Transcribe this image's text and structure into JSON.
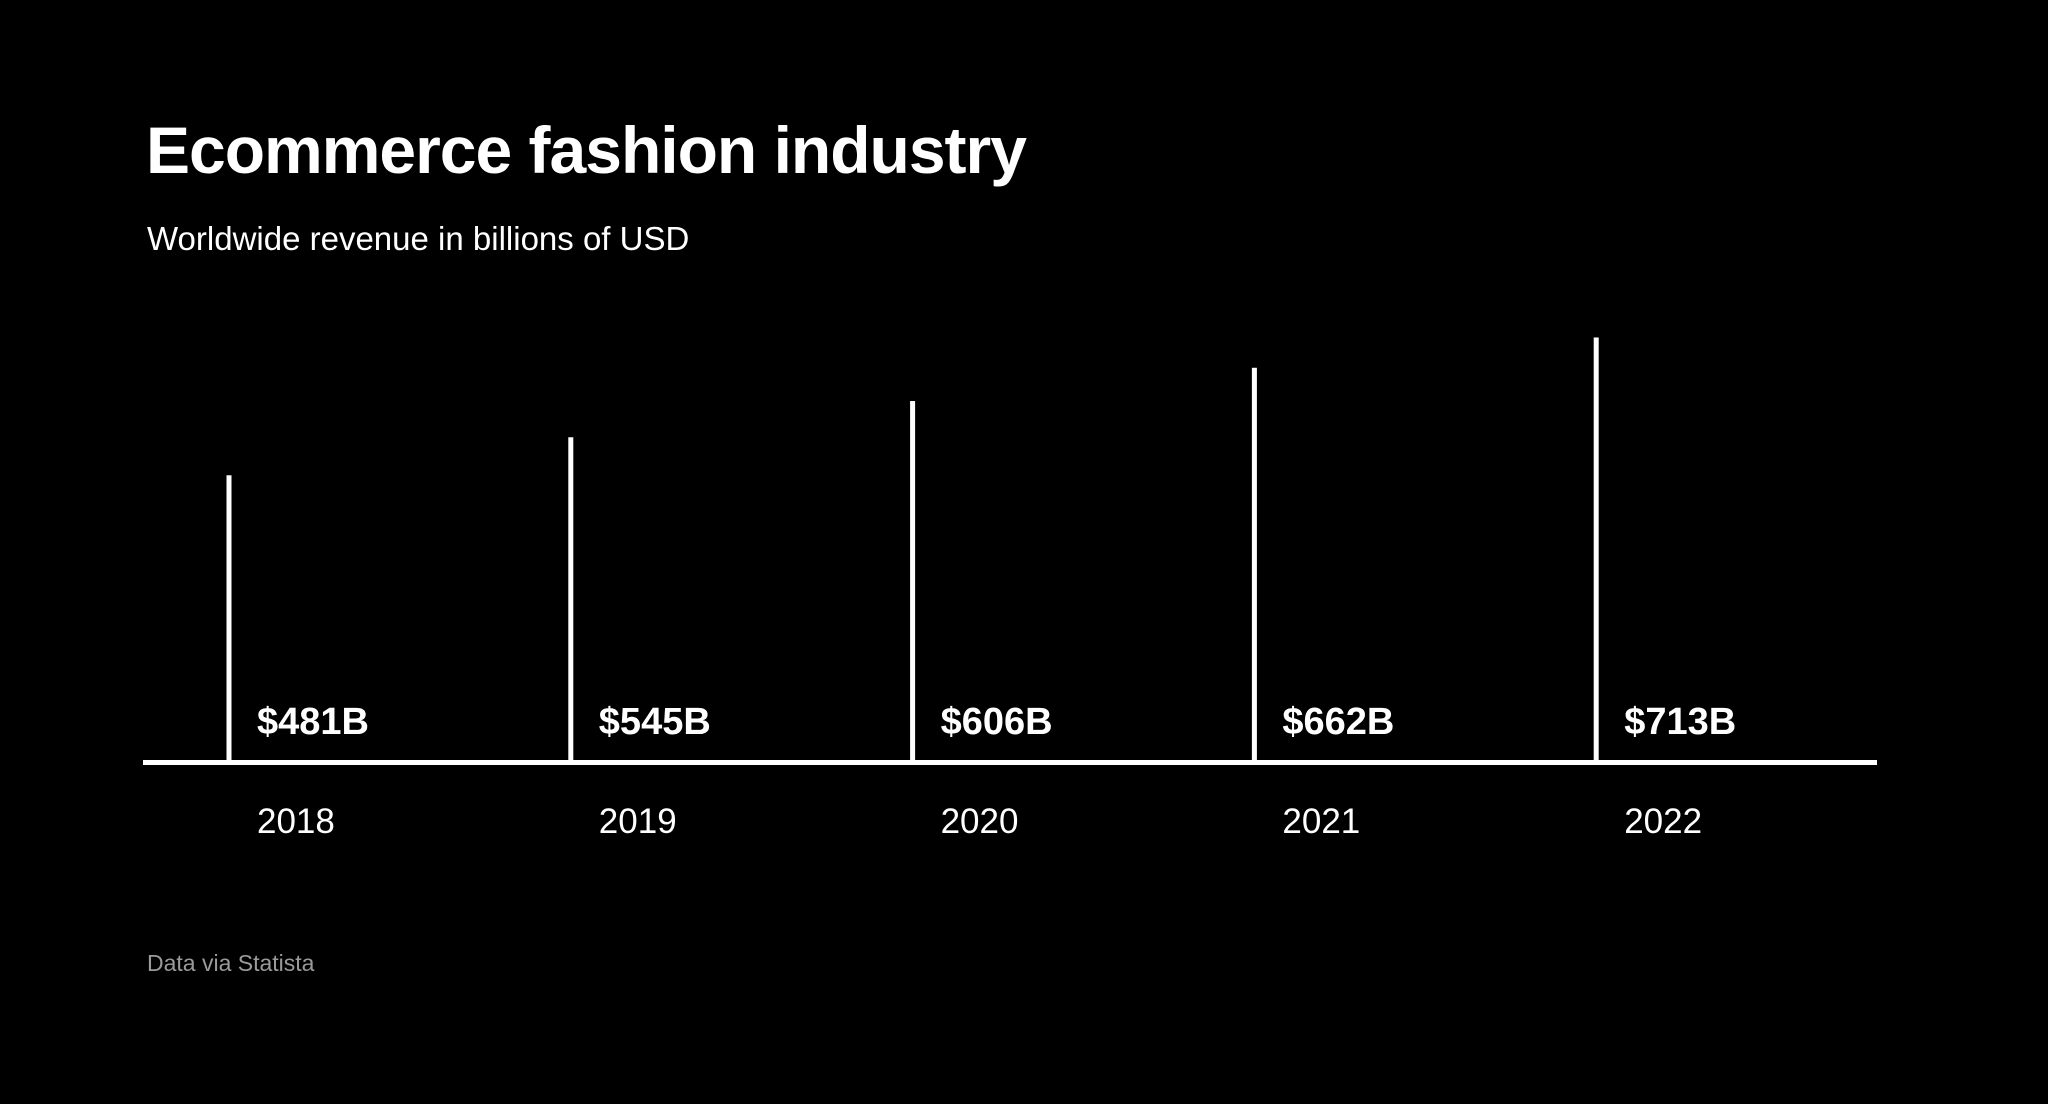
{
  "chart_data": {
    "type": "bar",
    "title": "Ecommerce fashion industry",
    "subtitle": "Worldwide revenue in billions of USD",
    "categories": [
      "2018",
      "2019",
      "2020",
      "2021",
      "2022"
    ],
    "values": [
      481,
      545,
      606,
      662,
      713
    ],
    "data_labels": [
      "$481B",
      "$545B",
      "$606B",
      "$662B",
      "$713B"
    ],
    "xlabel": "",
    "ylabel": "",
    "ylim": [
      0,
      713
    ],
    "grid": false,
    "colors": {
      "background": "#000000",
      "bars": "#ffffff",
      "footer": "#9a9a9a"
    },
    "source": "Data via Statista"
  }
}
